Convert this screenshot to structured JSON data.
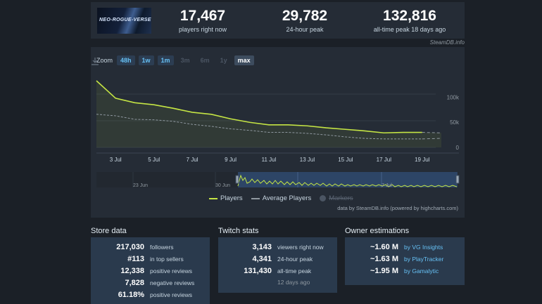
{
  "header": {
    "game_art_text": "NEO-ROGUE-VERSE",
    "stats": [
      {
        "value": "17,467",
        "label": "players right now"
      },
      {
        "value": "29,782",
        "label": "24-hour peak"
      },
      {
        "value": "132,816",
        "label": "all-time peak 18 days ago"
      }
    ],
    "credit": "SteamDB.info"
  },
  "chart": {
    "zoom_label": "Zoom",
    "zoom_buttons": [
      {
        "label": "48h",
        "state": "on"
      },
      {
        "label": "1w",
        "state": "on"
      },
      {
        "label": "1m",
        "state": "on"
      },
      {
        "label": "3m",
        "state": "off"
      },
      {
        "label": "6m",
        "state": "off"
      },
      {
        "label": "1y",
        "state": "off"
      },
      {
        "label": "max",
        "state": "sel"
      }
    ],
    "legend": {
      "players": "Players",
      "average": "Average Players",
      "markers": "Markers"
    },
    "credit": "data by SteamDB.info (powered by highcharts.com)",
    "navigator_labels": [
      "23 Jun",
      "30 Jun",
      "7 Jul"
    ]
  },
  "chart_data": {
    "type": "line",
    "x": [
      "2 Jul",
      "3 Jul",
      "4 Jul",
      "5 Jul",
      "6 Jul",
      "7 Jul",
      "8 Jul",
      "9 Jul",
      "10 Jul",
      "11 Jul",
      "12 Jul",
      "13 Jul",
      "14 Jul",
      "15 Jul",
      "16 Jul",
      "17 Jul",
      "18 Jul",
      "19 Jul",
      "20 Jul"
    ],
    "x_tick_labels": [
      "3 Jul",
      "5 Jul",
      "7 Jul",
      "9 Jul",
      "11 Jul",
      "13 Jul",
      "15 Jul",
      "17 Jul",
      "19 Jul"
    ],
    "y_tick_labels": [
      "100k",
      "50k",
      "0"
    ],
    "ylim": [
      0,
      132816
    ],
    "series": [
      {
        "name": "Players",
        "color": "#c5e544",
        "values": [
          132816,
          98000,
          89000,
          85000,
          78000,
          70000,
          66000,
          57000,
          50000,
          45000,
          45000,
          43000,
          39000,
          36000,
          33000,
          29000,
          30000,
          30000,
          29000
        ]
      },
      {
        "name": "Average Players",
        "color": "#8f98a0",
        "values": [
          66000,
          63000,
          56000,
          55000,
          52000,
          46000,
          42000,
          37000,
          34000,
          30000,
          30000,
          28000,
          25000,
          21000,
          18000,
          17000,
          17000,
          17000,
          18000
        ]
      }
    ]
  },
  "store": {
    "title": "Store data",
    "rows": [
      {
        "value": "217,030",
        "label": "followers"
      },
      {
        "value": "#113",
        "label": "in top sellers"
      },
      {
        "value": "12,338",
        "label": "positive reviews"
      },
      {
        "value": "7,828",
        "label": "negative reviews"
      },
      {
        "value": "61.18%",
        "label": "positive reviews"
      }
    ]
  },
  "twitch": {
    "title": "Twitch stats",
    "rows": [
      {
        "value": "3,143",
        "label": "viewers right now"
      },
      {
        "value": "4,341",
        "label": "24-hour peak"
      },
      {
        "value": "131,430",
        "label": "all-time peak"
      }
    ],
    "sub": "12 days ago"
  },
  "owners": {
    "title": "Owner estimations",
    "rows": [
      {
        "value": "~1.60 M",
        "label": "by VG Insights"
      },
      {
        "value": "~1.63 M",
        "label": "by PlayTracker"
      },
      {
        "value": "~1.95 M",
        "label": "by Gamalytic"
      }
    ]
  },
  "colors": {
    "accent": "#66c0f4",
    "players_line": "#c5e544",
    "panel": "#252c36",
    "box": "#2a3a4d"
  }
}
